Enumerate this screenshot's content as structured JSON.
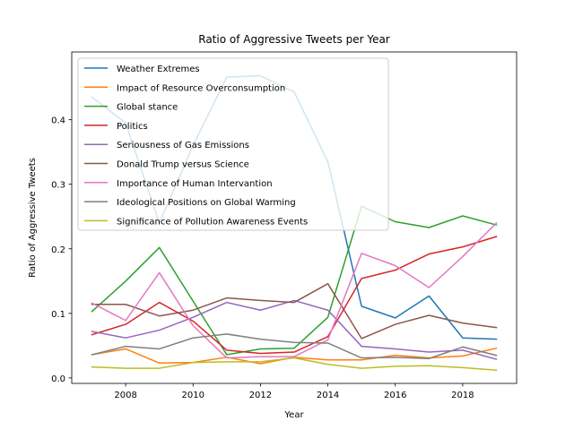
{
  "chart_data": {
    "type": "line",
    "title": "Ratio of Aggressive Tweets per Year",
    "xlabel": "Year",
    "ylabel": "Ratio of Aggressive Tweets",
    "xlim": [
      2006.4,
      2019.6
    ],
    "ylim": [
      -0.0085,
      0.505
    ],
    "x_ticks": [
      2008,
      2010,
      2012,
      2014,
      2016,
      2018
    ],
    "y_ticks": [
      0.0,
      0.1,
      0.2,
      0.3,
      0.4
    ],
    "y_tick_labels": [
      "0.0",
      "0.1",
      "0.2",
      "0.3",
      "0.4"
    ],
    "grid": false,
    "legend_position": "upper-left",
    "x": [
      2007,
      2008,
      2009,
      2010,
      2011,
      2012,
      2013,
      2014,
      2015,
      2016,
      2017,
      2018,
      2019
    ],
    "series": [
      {
        "name": "Weather Extremes",
        "color": "#1f77b4",
        "values": [
          0.435,
          0.395,
          0.24,
          0.36,
          0.466,
          0.468,
          0.443,
          0.335,
          0.111,
          0.093,
          0.127,
          0.062,
          0.06
        ]
      },
      {
        "name": "Impact of Resource Overconsumption",
        "color": "#ff7f0e",
        "values": [
          0.036,
          0.045,
          0.023,
          0.024,
          0.032,
          0.022,
          0.032,
          0.028,
          0.028,
          0.035,
          0.031,
          0.034,
          0.046
        ]
      },
      {
        "name": "Global stance",
        "color": "#2ca02c",
        "values": [
          0.103,
          0.15,
          0.202,
          0.119,
          0.036,
          0.045,
          0.046,
          0.094,
          0.266,
          0.242,
          0.233,
          0.251,
          0.237
        ]
      },
      {
        "name": "Politics",
        "color": "#d62728",
        "values": [
          0.067,
          0.083,
          0.117,
          0.088,
          0.043,
          0.038,
          0.04,
          0.064,
          0.154,
          0.167,
          0.192,
          0.203,
          0.219
        ]
      },
      {
        "name": "Seriousness of Gas Emissions",
        "color": "#9467bd",
        "values": [
          0.072,
          0.062,
          0.074,
          0.094,
          0.117,
          0.105,
          0.12,
          0.105,
          0.049,
          0.045,
          0.04,
          0.043,
          0.029
        ]
      },
      {
        "name": "Donald Trump versus Science",
        "color": "#8c564b",
        "values": [
          0.114,
          0.114,
          0.096,
          0.105,
          0.124,
          0.12,
          0.117,
          0.146,
          0.061,
          0.083,
          0.097,
          0.085,
          0.078
        ]
      },
      {
        "name": "Importance of Human Intervantion",
        "color": "#e377c2",
        "values": [
          0.116,
          0.089,
          0.163,
          0.081,
          0.031,
          0.033,
          0.033,
          0.059,
          0.193,
          0.174,
          0.14,
          0.188,
          0.24
        ]
      },
      {
        "name": "Ideological Positions on Global Warming",
        "color": "#7f7f7f",
        "values": [
          0.036,
          0.049,
          0.045,
          0.062,
          0.068,
          0.06,
          0.055,
          0.054,
          0.031,
          0.032,
          0.03,
          0.048,
          0.035
        ]
      },
      {
        "name": "Significance of Pollution Awareness Events",
        "color": "#bcbd22",
        "values": [
          0.017,
          0.015,
          0.015,
          0.024,
          0.025,
          0.025,
          0.031,
          0.021,
          0.015,
          0.018,
          0.019,
          0.016,
          0.012
        ]
      }
    ]
  }
}
